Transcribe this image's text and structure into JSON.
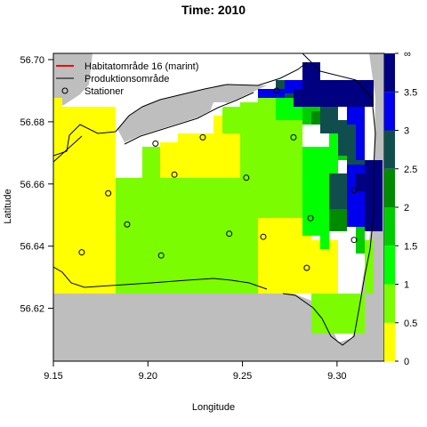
{
  "chart_data": {
    "type": "heatmap",
    "title": "Time: 2010",
    "xlabel": "Longitude",
    "ylabel": "Latitude",
    "xlim": [
      9.15,
      9.325
    ],
    "ylim": [
      56.603,
      56.702
    ],
    "x_ticks": [
      "9.15",
      "9.20",
      "9.25",
      "9.30"
    ],
    "y_ticks": [
      "56.62",
      "56.64",
      "56.66",
      "56.68",
      "56.70"
    ],
    "grid": false,
    "legend_position": "top-left",
    "legend": [
      {
        "label": "Habitatområde 16 (marint)",
        "symbol": "line",
        "color": "#ff0000"
      },
      {
        "label": "Produktionsområde",
        "symbol": "line",
        "color": "#000000"
      },
      {
        "label": "Stationer",
        "symbol": "circle",
        "color": "#000000"
      }
    ],
    "colorbar": {
      "ticks": [
        "0",
        "0.5",
        "1",
        "1.5",
        "2",
        "2.5",
        "3",
        "3.5",
        "∞"
      ],
      "bands": [
        {
          "from": 0,
          "to": 0.5,
          "color": "#ffff00"
        },
        {
          "from": 0.5,
          "to": 1,
          "color": "#7cfc00"
        },
        {
          "from": 1,
          "to": 1.5,
          "color": "#00ff00"
        },
        {
          "from": 1.5,
          "to": 2,
          "color": "#00cd00"
        },
        {
          "from": 2,
          "to": 2.5,
          "color": "#008b00"
        },
        {
          "from": 2.5,
          "to": 3,
          "color": "#104e4e"
        },
        {
          "from": 3,
          "to": 3.5,
          "color": "#0000ee"
        },
        {
          "from": 3.5,
          "to": 4,
          "color": "#000080"
        }
      ]
    },
    "stations": [
      {
        "x": 9.268,
        "y": 56.69
      },
      {
        "x": 9.204,
        "y": 56.673
      },
      {
        "x": 9.229,
        "y": 56.675
      },
      {
        "x": 9.277,
        "y": 56.675
      },
      {
        "x": 9.214,
        "y": 56.663
      },
      {
        "x": 9.252,
        "y": 56.662
      },
      {
        "x": 9.179,
        "y": 56.657
      },
      {
        "x": 9.309,
        "y": 56.658
      },
      {
        "x": 9.189,
        "y": 56.647
      },
      {
        "x": 9.286,
        "y": 56.649
      },
      {
        "x": 9.243,
        "y": 56.644
      },
      {
        "x": 9.261,
        "y": 56.643
      },
      {
        "x": 9.309,
        "y": 56.642
      },
      {
        "x": 9.165,
        "y": 56.638
      },
      {
        "x": 9.207,
        "y": 56.637
      },
      {
        "x": 9.284,
        "y": 56.633
      }
    ]
  }
}
